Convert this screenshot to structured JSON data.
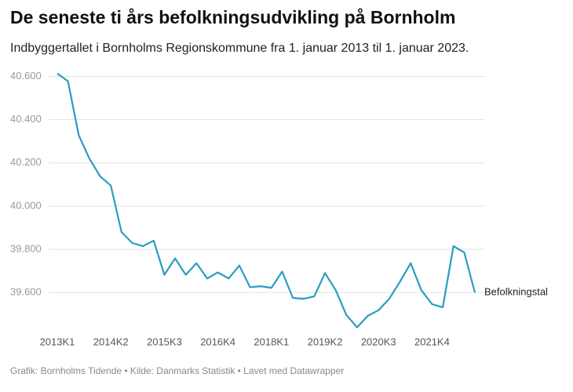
{
  "chart_data": {
    "type": "line",
    "title": "De seneste ti års befolkningsudvikling på Bornholm",
    "subtitle": "Indbyggertallet i Bornholms Regionskommune fra 1. januar 2013 til 1. januar 2023.",
    "source": "Grafik: Bornholms Tidende • Kilde: Danmarks Statistik • Lavet med Datawrapper",
    "categories": [
      "2013K1",
      null,
      null,
      null,
      null,
      "2014K2",
      null,
      null,
      null,
      null,
      "2015K3",
      null,
      null,
      null,
      null,
      "2016K4",
      null,
      null,
      null,
      null,
      "2018K1",
      null,
      null,
      null,
      null,
      "2019K2",
      null,
      null,
      null,
      null,
      "2020K3",
      null,
      null,
      null,
      null,
      "2021K4",
      null,
      null,
      null,
      null
    ],
    "series": [
      {
        "name": "Befolkningstal",
        "color": "#2a9dc2",
        "values": [
          40614,
          40578,
          40328,
          40220,
          40138,
          40095,
          39880,
          39829,
          39815,
          39840,
          39682,
          39758,
          39682,
          39736,
          39665,
          39693,
          39665,
          39725,
          39625,
          39629,
          39622,
          39697,
          39575,
          39571,
          39582,
          39690,
          39611,
          39496,
          39439,
          39492,
          39518,
          39571,
          39650,
          39736,
          39611,
          39546,
          39532,
          39815,
          39786,
          39600
        ]
      }
    ],
    "ylim": [
      39430,
      40620
    ],
    "yticks": [
      {
        "value": 39600,
        "label": "39.600"
      },
      {
        "value": 39800,
        "label": "39.800"
      },
      {
        "value": 40000,
        "label": "40.000"
      },
      {
        "value": 40200,
        "label": "40.200"
      },
      {
        "value": 40400,
        "label": "40.400"
      },
      {
        "value": 40600,
        "label": "40.600"
      }
    ],
    "grid": true
  }
}
